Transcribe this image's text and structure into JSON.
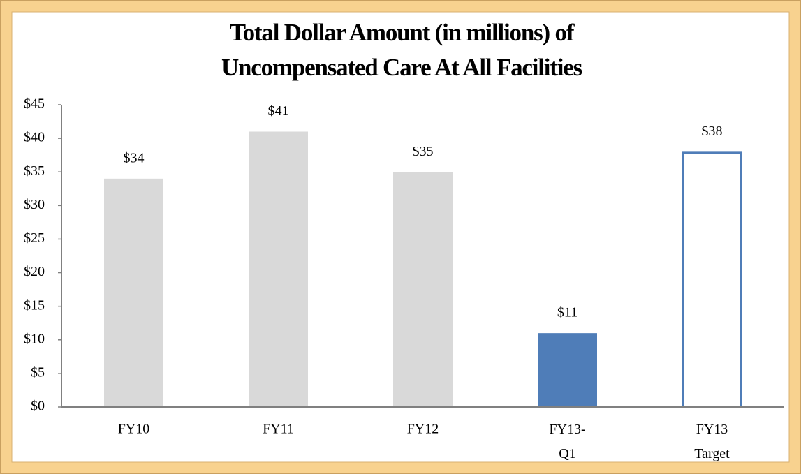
{
  "chart_data": {
    "type": "bar",
    "title": [
      "Total Dollar Amount (in millions) of",
      "Uncompensated Care At All Facilities"
    ],
    "categories": [
      "FY10",
      "FY11",
      "FY12",
      "FY13-\nQ1",
      "FY13\nTarget"
    ],
    "values": [
      34,
      41,
      35,
      11,
      38
    ],
    "value_labels": [
      "$34",
      "$41",
      "$35",
      "$11",
      "$38"
    ],
    "colors": [
      "#d9d9d9",
      "#d9d9d9",
      "#d9d9d9",
      "#4f7db8",
      "#4f7db8"
    ],
    "outline": [
      false,
      false,
      false,
      false,
      true
    ],
    "ylim": [
      0,
      45
    ],
    "yticks": [
      {
        "value": 0,
        "label": "$0"
      },
      {
        "value": 5,
        "label": "$5"
      },
      {
        "value": 10,
        "label": "$10"
      },
      {
        "value": 15,
        "label": "$15"
      },
      {
        "value": 20,
        "label": "$20"
      },
      {
        "value": 25,
        "label": "$25"
      },
      {
        "value": 30,
        "label": "$30"
      },
      {
        "value": 35,
        "label": "$35"
      },
      {
        "value": 40,
        "label": "$40"
      },
      {
        "value": 45,
        "label": "$45"
      }
    ],
    "grid": false
  }
}
